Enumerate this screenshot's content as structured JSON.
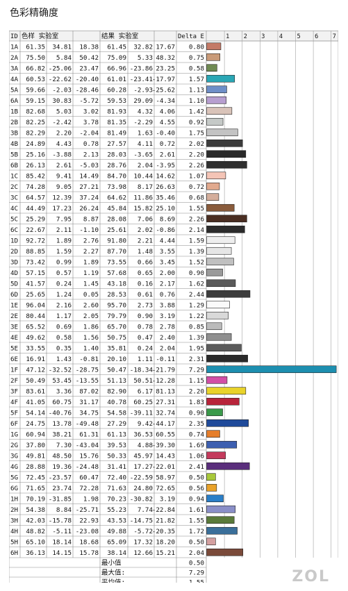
{
  "title": "色彩精确度",
  "watermark": "ZOL",
  "header": {
    "id": "ID",
    "sample": "色样 实验室",
    "result": "结果 实验室",
    "delta": "Delta E"
  },
  "summary": [
    {
      "label": "最小值",
      "value": "0.50"
    },
    {
      "label": "最大值:",
      "value": "7.29"
    },
    {
      "label": "平均值:",
      "value": "1.55"
    }
  ],
  "chart_data": {
    "type": "bar",
    "orientation": "horizontal",
    "xlim": [
      0,
      7
    ],
    "x_ticks": [
      "1",
      "2",
      "3",
      "4",
      "5",
      "6",
      "7"
    ],
    "categories": [
      "1A",
      "2A",
      "3A",
      "4A",
      "5A",
      "6A",
      "1B",
      "2B",
      "3B",
      "4B",
      "5B",
      "6B",
      "1C",
      "2C",
      "3C",
      "4C",
      "5C",
      "6C",
      "1D",
      "2D",
      "3D",
      "4D",
      "5D",
      "6D",
      "1E",
      "2E",
      "3E",
      "4E",
      "5E",
      "6E",
      "1F",
      "2F",
      "3F",
      "4F",
      "5F",
      "6F",
      "1G",
      "2G",
      "3G",
      "4G",
      "5G",
      "6G",
      "1H",
      "2H",
      "3H",
      "4H",
      "5H",
      "6H"
    ],
    "values": [
      0.8,
      0.75,
      0.58,
      1.57,
      1.13,
      1.1,
      1.42,
      0.92,
      1.75,
      2.02,
      2.2,
      2.26,
      1.07,
      0.72,
      0.68,
      1.55,
      2.26,
      2.14,
      1.59,
      1.39,
      1.52,
      0.9,
      1.62,
      2.44,
      1.29,
      1.22,
      0.85,
      1.39,
      1.95,
      2.31,
      7.29,
      1.15,
      2.2,
      1.83,
      0.9,
      2.35,
      0.74,
      1.69,
      1.06,
      2.41,
      0.5,
      0.56,
      0.94,
      1.61,
      1.55,
      1.72,
      0.5,
      2.04
    ],
    "bar_colors": [
      "#c47a67",
      "#c99a78",
      "#6f8a52",
      "#2aa7b5",
      "#6e8fc8",
      "#b79fd0",
      "#d9c3b9",
      "#c5c9c7",
      "#c3c3c3",
      "#3b3b3b",
      "#2a2a2a",
      "#2f2f2f",
      "#f4c4b6",
      "#e1a98e",
      "#d4ae9c",
      "#8a5c3c",
      "#4a2e22",
      "#2b2b2b",
      "#eeeeee",
      "#e6e6e6",
      "#c0c0c0",
      "#9a9a9a",
      "#5a5a5a",
      "#3c3c3c",
      "#fafafa",
      "#d9d9d9",
      "#bbbbbb",
      "#8f8f8f",
      "#5b5b5b",
      "#2a2a2a",
      "#1d8fb0",
      "#d24fa7",
      "#e9d32a",
      "#b8243a",
      "#3a9a4a",
      "#1f4a9a",
      "#e67e2a",
      "#3d5fb0",
      "#c43a5c",
      "#5a2e7c",
      "#a8c83a",
      "#e9a22a",
      "#2a7fc8",
      "#8a8fc8",
      "#5a7a3a",
      "#3a6f9a",
      "#d4a0a0",
      "#7a4a3a"
    ],
    "rows": [
      {
        "id": "1A",
        "s": [
          "61.35",
          "34.81",
          "18.38"
        ],
        "r": [
          "61.45",
          "32.82",
          "17.67"
        ],
        "d": "0.80"
      },
      {
        "id": "2A",
        "s": [
          "75.50",
          "5.84",
          "50.42"
        ],
        "r": [
          "75.09",
          "5.33",
          "48.32"
        ],
        "d": "0.75"
      },
      {
        "id": "3A",
        "s": [
          "66.82",
          "-25.06",
          "23.47"
        ],
        "r": [
          "66.96",
          "-23.86",
          "23.25"
        ],
        "d": "0.58"
      },
      {
        "id": "4A",
        "s": [
          "60.53",
          "-22.62",
          "-20.40"
        ],
        "r": [
          "61.01",
          "-23.41",
          "-17.97"
        ],
        "d": "1.57"
      },
      {
        "id": "5A",
        "s": [
          "59.66",
          "-2.03",
          "-28.46"
        ],
        "r": [
          "60.28",
          "-2.93",
          "-25.62"
        ],
        "d": "1.13"
      },
      {
        "id": "6A",
        "s": [
          "59.15",
          "30.83",
          "-5.72"
        ],
        "r": [
          "59.53",
          "29.09",
          "-4.34"
        ],
        "d": "1.10"
      },
      {
        "id": "1B",
        "s": [
          "82.68",
          "5.03",
          "3.02"
        ],
        "r": [
          "81.93",
          "4.32",
          "4.06"
        ],
        "d": "1.42"
      },
      {
        "id": "2B",
        "s": [
          "82.25",
          "-2.42",
          "3.78"
        ],
        "r": [
          "81.35",
          "-2.29",
          "4.55"
        ],
        "d": "0.92"
      },
      {
        "id": "3B",
        "s": [
          "82.29",
          "2.20",
          "-2.04"
        ],
        "r": [
          "81.49",
          "1.63",
          "-0.40"
        ],
        "d": "1.75"
      },
      {
        "id": "4B",
        "s": [
          "24.89",
          "4.43",
          "0.78"
        ],
        "r": [
          "27.57",
          "4.11",
          "0.72"
        ],
        "d": "2.02"
      },
      {
        "id": "5B",
        "s": [
          "25.16",
          "-3.88",
          "2.13"
        ],
        "r": [
          "28.03",
          "-3.65",
          "2.61"
        ],
        "d": "2.20"
      },
      {
        "id": "6B",
        "s": [
          "26.13",
          "2.61",
          "-5.03"
        ],
        "r": [
          "28.76",
          "2.04",
          "-3.95"
        ],
        "d": "2.26"
      },
      {
        "id": "1C",
        "s": [
          "85.42",
          "9.41",
          "14.49"
        ],
        "r": [
          "84.70",
          "10.44",
          "14.62"
        ],
        "d": "1.07"
      },
      {
        "id": "2C",
        "s": [
          "74.28",
          "9.05",
          "27.21"
        ],
        "r": [
          "73.98",
          "8.17",
          "26.63"
        ],
        "d": "0.72"
      },
      {
        "id": "3C",
        "s": [
          "64.57",
          "12.39",
          "37.24"
        ],
        "r": [
          "64.62",
          "11.86",
          "35.46"
        ],
        "d": "0.68"
      },
      {
        "id": "4C",
        "s": [
          "44.49",
          "17.23",
          "26.24"
        ],
        "r": [
          "45.84",
          "15.82",
          "25.10"
        ],
        "d": "1.55"
      },
      {
        "id": "5C",
        "s": [
          "25.29",
          "7.95",
          "8.87"
        ],
        "r": [
          "28.08",
          "7.06",
          "8.69"
        ],
        "d": "2.26"
      },
      {
        "id": "6C",
        "s": [
          "22.67",
          "2.11",
          "-1.10"
        ],
        "r": [
          "25.61",
          "2.02",
          "-0.86"
        ],
        "d": "2.14"
      },
      {
        "id": "1D",
        "s": [
          "92.72",
          "1.89",
          "2.76"
        ],
        "r": [
          "91.80",
          "2.21",
          "4.44"
        ],
        "d": "1.59"
      },
      {
        "id": "2D",
        "s": [
          "88.85",
          "1.59",
          "2.27"
        ],
        "r": [
          "87.70",
          "1.48",
          "3.55"
        ],
        "d": "1.39"
      },
      {
        "id": "3D",
        "s": [
          "73.42",
          "0.99",
          "1.89"
        ],
        "r": [
          "73.55",
          "0.66",
          "3.45"
        ],
        "d": "1.52"
      },
      {
        "id": "4D",
        "s": [
          "57.15",
          "0.57",
          "1.19"
        ],
        "r": [
          "57.68",
          "0.65",
          "2.00"
        ],
        "d": "0.90"
      },
      {
        "id": "5D",
        "s": [
          "41.57",
          "0.24",
          "1.45"
        ],
        "r": [
          "43.18",
          "0.16",
          "2.17"
        ],
        "d": "1.62"
      },
      {
        "id": "6D",
        "s": [
          "25.65",
          "1.24",
          "0.05"
        ],
        "r": [
          "28.53",
          "0.61",
          "0.76"
        ],
        "d": "2.44"
      },
      {
        "id": "1E",
        "s": [
          "96.04",
          "2.16",
          "2.60"
        ],
        "r": [
          "95.70",
          "2.73",
          "3.88"
        ],
        "d": "1.29"
      },
      {
        "id": "2E",
        "s": [
          "80.44",
          "1.17",
          "2.05"
        ],
        "r": [
          "79.79",
          "0.90",
          "3.19"
        ],
        "d": "1.22"
      },
      {
        "id": "3E",
        "s": [
          "65.52",
          "0.69",
          "1.86"
        ],
        "r": [
          "65.70",
          "0.78",
          "2.78"
        ],
        "d": "0.85"
      },
      {
        "id": "4E",
        "s": [
          "49.62",
          "0.58",
          "1.56"
        ],
        "r": [
          "50.75",
          "0.47",
          "2.40"
        ],
        "d": "1.39"
      },
      {
        "id": "5E",
        "s": [
          "33.55",
          "0.35",
          "1.40"
        ],
        "r": [
          "35.81",
          "0.24",
          "2.04"
        ],
        "d": "1.95"
      },
      {
        "id": "6E",
        "s": [
          "16.91",
          "1.43",
          "-0.81"
        ],
        "r": [
          "20.10",
          "1.11",
          "-0.11"
        ],
        "d": "2.31"
      },
      {
        "id": "1F",
        "s": [
          "47.12",
          "-32.52",
          "-28.75"
        ],
        "r": [
          "50.47",
          "-18.34",
          "-21.79"
        ],
        "d": "7.29"
      },
      {
        "id": "2F",
        "s": [
          "50.49",
          "53.45",
          "-13.55"
        ],
        "r": [
          "51.13",
          "50.51",
          "-12.28"
        ],
        "d": "1.15"
      },
      {
        "id": "3F",
        "s": [
          "83.61",
          "3.36",
          "87.02"
        ],
        "r": [
          "82.90",
          "6.17",
          "81.13"
        ],
        "d": "2.20"
      },
      {
        "id": "4F",
        "s": [
          "41.05",
          "60.75",
          "31.17"
        ],
        "r": [
          "40.78",
          "60.25",
          "27.31"
        ],
        "d": "1.83"
      },
      {
        "id": "5F",
        "s": [
          "54.14",
          "-40.76",
          "34.75"
        ],
        "r": [
          "54.58",
          "-39.11",
          "32.74"
        ],
        "d": "0.90"
      },
      {
        "id": "6F",
        "s": [
          "24.75",
          "13.78",
          "-49.48"
        ],
        "r": [
          "27.29",
          "9.42",
          "-44.17"
        ],
        "d": "2.35"
      },
      {
        "id": "1G",
        "s": [
          "60.94",
          "38.21",
          "61.31"
        ],
        "r": [
          "61.13",
          "36.53",
          "60.55"
        ],
        "d": "0.74"
      },
      {
        "id": "2G",
        "s": [
          "37.80",
          "7.30",
          "-43.04"
        ],
        "r": [
          "39.53",
          "4.88",
          "-39.30"
        ],
        "d": "1.69"
      },
      {
        "id": "3G",
        "s": [
          "49.81",
          "48.50",
          "15.76"
        ],
        "r": [
          "50.33",
          "45.97",
          "14.43"
        ],
        "d": "1.06"
      },
      {
        "id": "4G",
        "s": [
          "28.88",
          "19.36",
          "-24.48"
        ],
        "r": [
          "31.41",
          "17.27",
          "-22.01"
        ],
        "d": "2.41"
      },
      {
        "id": "5G",
        "s": [
          "72.45",
          "-23.57",
          "60.47"
        ],
        "r": [
          "72.40",
          "-22.59",
          "58.97"
        ],
        "d": "0.50"
      },
      {
        "id": "6G",
        "s": [
          "71.65",
          "23.74",
          "72.28"
        ],
        "r": [
          "71.63",
          "24.80",
          "72.65"
        ],
        "d": "0.56"
      },
      {
        "id": "1H",
        "s": [
          "70.19",
          "-31.85",
          "1.98"
        ],
        "r": [
          "70.23",
          "-30.82",
          "3.19"
        ],
        "d": "0.94"
      },
      {
        "id": "2H",
        "s": [
          "54.38",
          "8.84",
          "-25.71"
        ],
        "r": [
          "55.23",
          "7.74",
          "-22.84"
        ],
        "d": "1.61"
      },
      {
        "id": "3H",
        "s": [
          "42.03",
          "-15.78",
          "22.93"
        ],
        "r": [
          "43.53",
          "-14.75",
          "21.82"
        ],
        "d": "1.55"
      },
      {
        "id": "4H",
        "s": [
          "48.82",
          "-5.11",
          "-23.08"
        ],
        "r": [
          "49.88",
          "-5.72",
          "-20.35"
        ],
        "d": "1.72"
      },
      {
        "id": "5H",
        "s": [
          "65.10",
          "18.14",
          "18.68"
        ],
        "r": [
          "65.09",
          "17.32",
          "18.20"
        ],
        "d": "0.50"
      },
      {
        "id": "6H",
        "s": [
          "36.13",
          "14.15",
          "15.78"
        ],
        "r": [
          "38.14",
          "12.66",
          "15.21"
        ],
        "d": "2.04"
      }
    ]
  }
}
